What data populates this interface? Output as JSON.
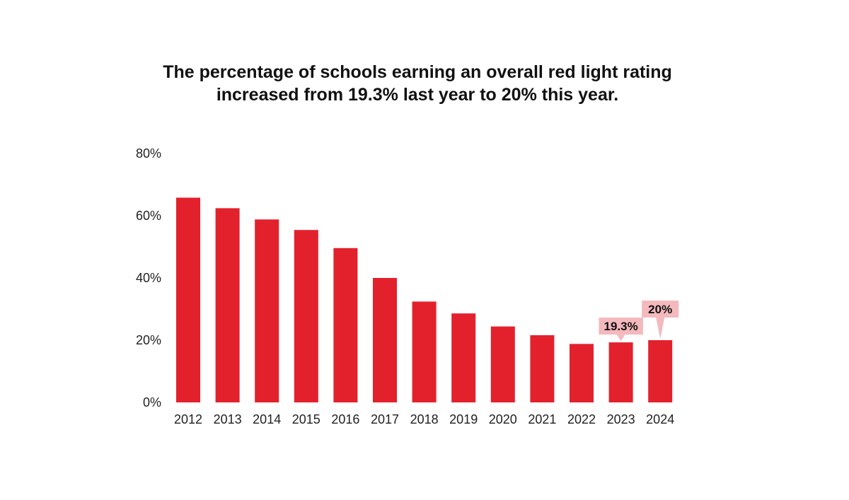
{
  "chart_data": {
    "type": "bar",
    "title_lines": [
      "The percentage of schools earning an overall red light rating",
      "increased from 19.3% last year to 20% this year."
    ],
    "categories": [
      "2012",
      "2013",
      "2014",
      "2015",
      "2016",
      "2017",
      "2018",
      "2019",
      "2020",
      "2021",
      "2022",
      "2023",
      "2024"
    ],
    "values": [
      65.8,
      62.4,
      58.8,
      55.4,
      49.6,
      40.0,
      32.4,
      28.6,
      24.4,
      21.6,
      18.8,
      19.3,
      20.0
    ],
    "yticks": [
      0,
      20,
      40,
      60,
      80
    ],
    "ytick_labels": [
      "0%",
      "20%",
      "40%",
      "60%",
      "80%"
    ],
    "ylim": [
      0,
      80
    ],
    "xlabel": "",
    "ylabel": "",
    "grid": false,
    "callouts": [
      {
        "category": "2023",
        "label": "19.3%"
      },
      {
        "category": "2024",
        "label": "20%"
      }
    ],
    "colors": {
      "bar": "#e3212d",
      "callout_bg": "#f4b9bd",
      "text": "#222222"
    }
  }
}
